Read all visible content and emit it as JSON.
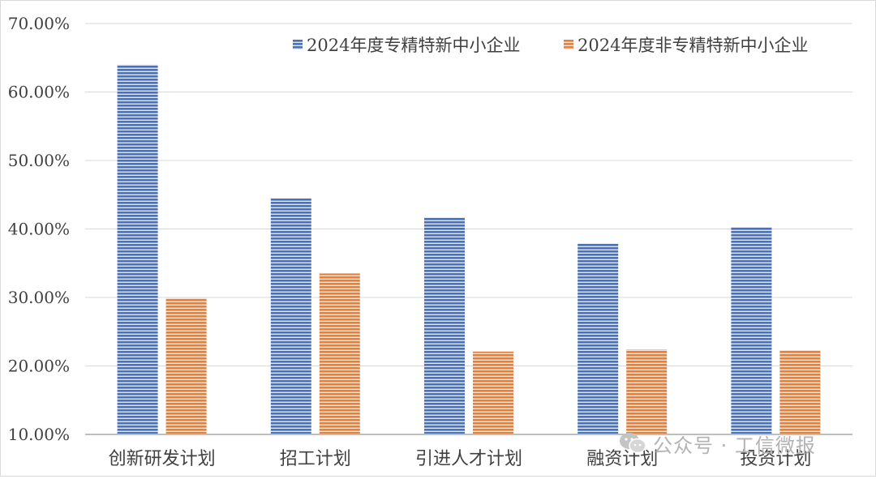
{
  "chart_data": {
    "type": "bar",
    "categories": [
      "创新研发计划",
      "招工计划",
      "引进人才计划",
      "融资计划",
      "投资计划"
    ],
    "series": [
      {
        "name": "2024年度专精特新中小企业",
        "values": [
          64.0,
          44.5,
          41.7,
          37.9,
          40.3
        ],
        "color": "#4472c4"
      },
      {
        "name": "2024年度非专精特新中小企业",
        "values": [
          29.9,
          33.5,
          22.1,
          22.4,
          22.3
        ],
        "color": "#ed7d31"
      }
    ],
    "yticks": [
      "10.00%",
      "20.00%",
      "30.00%",
      "40.00%",
      "50.00%",
      "60.00%",
      "70.00%"
    ],
    "ylim": [
      10,
      70
    ],
    "grid": true,
    "legend_position": "top-right",
    "title": "",
    "xlabel": "",
    "ylabel": ""
  },
  "watermark": {
    "icon": "wechat-icon",
    "text": "公众号 · 工信微报"
  }
}
